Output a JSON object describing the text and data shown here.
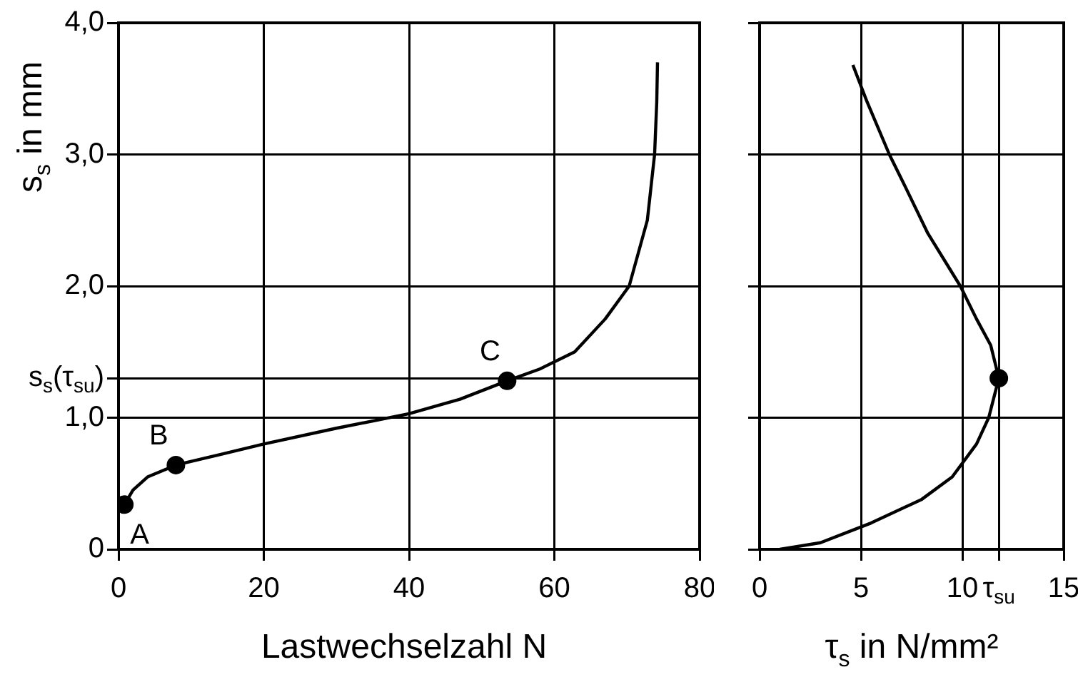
{
  "chart_data": [
    {
      "type": "line",
      "xlabel": "Lastwechselzahl N",
      "ylabel": "s$_{s}$ in mm",
      "xlim": [
        0,
        80
      ],
      "ylim": [
        0,
        4
      ],
      "xticks": [
        0,
        20,
        40,
        60,
        80
      ],
      "yticks": [
        0,
        {
          "value": 1,
          "label": "1,0"
        },
        {
          "value": 1.3,
          "label": "s$_{s}$(τ$_{su}$)"
        },
        {
          "value": 2,
          "label": "2,0"
        },
        {
          "value": 3,
          "label": "3,0"
        },
        {
          "value": 4,
          "label": "4,0"
        }
      ],
      "grid": true,
      "legend": false,
      "series": [
        {
          "type": "line",
          "color": "#000000",
          "marker": "none",
          "x": [
            0.3,
            0.8,
            2,
            4,
            7.9,
            14,
            20,
            30,
            40,
            47,
            53.5,
            58,
            62.8,
            67,
            70.3,
            72.8,
            73.8,
            74.1,
            74.2
          ],
          "values": [
            0.28,
            0.34,
            0.45,
            0.55,
            0.64,
            0.72,
            0.8,
            0.92,
            1.03,
            1.14,
            1.28,
            1.37,
            1.5,
            1.75,
            2.0,
            2.5,
            3.0,
            3.4,
            3.7
          ]
        },
        {
          "type": "scatter",
          "color": "#000000",
          "marker": "circle",
          "x": [
            0.8,
            7.9,
            53.5
          ],
          "values": [
            0.34,
            0.64,
            1.28
          ]
        }
      ],
      "annotations": [
        {
          "text": "A",
          "x": 0.8,
          "y": 0.34
        },
        {
          "text": "B",
          "x": 7.9,
          "y": 0.64
        },
        {
          "text": "C",
          "x": 53.5,
          "y": 1.28
        }
      ]
    },
    {
      "type": "line",
      "xlabel": "τ$_{s}$ in N/mm²",
      "xlim": [
        0,
        15
      ],
      "ylim": [
        0,
        4
      ],
      "xticks": [
        0,
        5,
        10,
        {
          "value": 11.8,
          "label": "τ$_{su}$"
        },
        15
      ],
      "yticks": [
        0,
        1,
        2,
        3,
        4
      ],
      "tick_labels": "x",
      "grid": true,
      "legend": false,
      "series": [
        {
          "type": "line",
          "color": "#000000",
          "marker": "none",
          "x": [
            1,
            3,
            5.5,
            8,
            9.5,
            10.7,
            11.3,
            11.8,
            11.4,
            10.7,
            9.9,
            8.3,
            7.2,
            6.4,
            5.3,
            4.6
          ],
          "values": [
            0,
            0.05,
            0.2,
            0.38,
            0.55,
            0.8,
            1.0,
            1.3,
            1.55,
            1.75,
            2.0,
            2.4,
            2.75,
            3.0,
            3.4,
            3.68
          ]
        },
        {
          "type": "scatter",
          "color": "#000000",
          "marker": "circle",
          "x": [
            11.8
          ],
          "values": [
            1.3
          ]
        }
      ]
    }
  ]
}
